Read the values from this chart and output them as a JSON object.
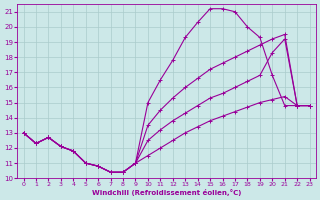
{
  "xlabel": "Windchill (Refroidissement éolien,°C)",
  "background_color": "#cce8e8",
  "grid_color": "#aacccc",
  "line_color": "#990099",
  "xlim": [
    -0.5,
    23.5
  ],
  "ylim": [
    10,
    21.5
  ],
  "xticks": [
    0,
    1,
    2,
    3,
    4,
    5,
    6,
    7,
    8,
    9,
    10,
    11,
    12,
    13,
    14,
    15,
    16,
    17,
    18,
    19,
    20,
    21,
    22,
    23
  ],
  "yticks": [
    10,
    11,
    12,
    13,
    14,
    15,
    16,
    17,
    18,
    19,
    20,
    21
  ],
  "lines": [
    {
      "x": [
        0,
        1,
        2,
        3,
        4,
        5,
        6,
        7,
        8,
        9,
        10,
        11,
        12,
        13,
        14,
        15,
        16,
        17,
        18,
        19,
        20,
        21,
        22,
        23
      ],
      "y": [
        13,
        12.3,
        12.7,
        12.1,
        11.8,
        11.0,
        10.8,
        10.4,
        10.4,
        11.0,
        11.5,
        12.0,
        12.5,
        13.0,
        13.4,
        13.8,
        14.1,
        14.4,
        14.7,
        15.0,
        15.2,
        15.4,
        14.8,
        14.8
      ]
    },
    {
      "x": [
        0,
        1,
        2,
        3,
        4,
        5,
        6,
        7,
        8,
        9,
        10,
        11,
        12,
        13,
        14,
        15,
        16,
        17,
        18,
        19,
        20,
        21,
        22,
        23
      ],
      "y": [
        13,
        12.3,
        12.7,
        12.1,
        11.8,
        11.0,
        10.8,
        10.4,
        10.4,
        11.0,
        12.5,
        13.2,
        13.8,
        14.3,
        14.8,
        15.3,
        15.6,
        16.0,
        16.4,
        16.8,
        18.3,
        19.2,
        14.8,
        14.8
      ]
    },
    {
      "x": [
        0,
        1,
        2,
        3,
        4,
        5,
        6,
        7,
        8,
        9,
        10,
        11,
        12,
        13,
        14,
        15,
        16,
        17,
        18,
        19,
        20,
        21,
        22,
        23
      ],
      "y": [
        13,
        12.3,
        12.7,
        12.1,
        11.8,
        11.0,
        10.8,
        10.4,
        10.4,
        11.0,
        13.5,
        14.5,
        15.3,
        16.0,
        16.6,
        17.2,
        17.6,
        18.0,
        18.4,
        18.8,
        19.2,
        19.5,
        14.8,
        14.8
      ]
    },
    {
      "x": [
        0,
        1,
        2,
        3,
        4,
        5,
        6,
        7,
        8,
        9,
        10,
        11,
        12,
        13,
        14,
        15,
        16,
        17,
        18,
        19,
        20,
        21,
        22,
        23
      ],
      "y": [
        13,
        12.3,
        12.7,
        12.1,
        11.8,
        11.0,
        10.8,
        10.4,
        10.4,
        11.0,
        15.0,
        16.5,
        17.8,
        19.3,
        20.3,
        21.2,
        21.2,
        21.0,
        20.0,
        19.3,
        16.8,
        14.8,
        14.8,
        14.8
      ]
    }
  ]
}
